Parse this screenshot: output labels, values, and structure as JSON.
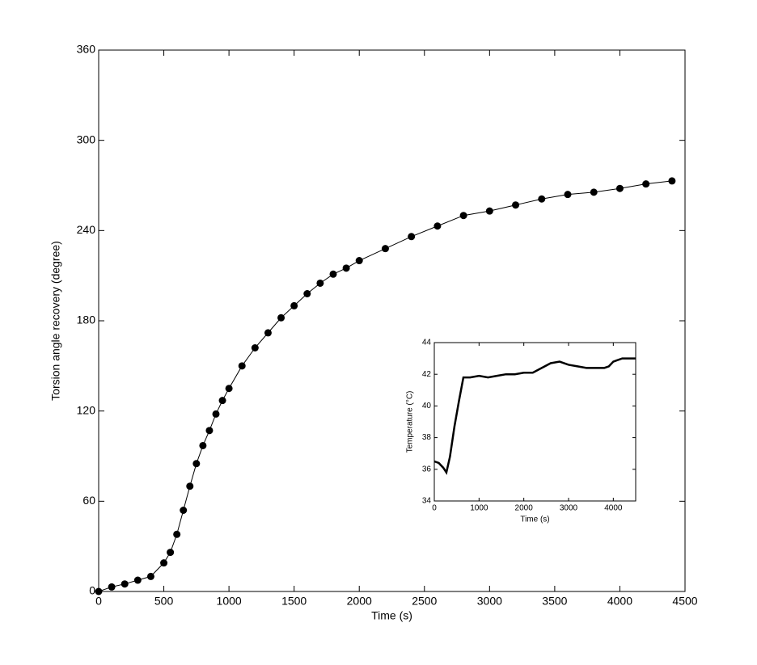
{
  "chart_data": [
    {
      "type": "line",
      "marker": "circle",
      "color": "#000000",
      "x_label": "Time (s)",
      "y_label": "Torsion angle recovery (degree)",
      "x": [
        0,
        100,
        200,
        300,
        400,
        500,
        550,
        600,
        650,
        700,
        750,
        800,
        850,
        900,
        950,
        1000,
        1100,
        1200,
        1300,
        1400,
        1500,
        1600,
        1700,
        1800,
        1900,
        2000,
        2200,
        2400,
        2600,
        2800,
        3000,
        3200,
        3400,
        3600,
        3800,
        4000,
        4200,
        4400
      ],
      "values": [
        0,
        3,
        5,
        7.5,
        10,
        19,
        26,
        38,
        54,
        70,
        85,
        97,
        107,
        118,
        127,
        135,
        150,
        162,
        172,
        182,
        190,
        198,
        205,
        211,
        215,
        220,
        228,
        236,
        243,
        250,
        253,
        257,
        261,
        264,
        265.5,
        268,
        271,
        273
      ],
      "xlim": [
        0,
        4500
      ],
      "xticks": [
        0,
        500,
        1000,
        1500,
        2000,
        2500,
        3000,
        3500,
        4000,
        4500
      ],
      "ylim": [
        0,
        360
      ],
      "yticks": [
        0,
        60,
        120,
        180,
        240,
        300,
        360
      ]
    },
    {
      "type": "line",
      "color": "#000000",
      "x_label": "Time (s)",
      "y_label": "Temperature (°C)",
      "x": [
        0,
        100,
        200,
        270,
        350,
        450,
        550,
        650,
        800,
        1000,
        1200,
        1400,
        1600,
        1800,
        2000,
        2200,
        2400,
        2600,
        2800,
        3000,
        3200,
        3400,
        3600,
        3800,
        3900,
        4000,
        4100,
        4200,
        4300,
        4400,
        4500
      ],
      "values": [
        36.5,
        36.4,
        36.1,
        35.8,
        36.8,
        38.7,
        40.3,
        41.8,
        41.8,
        41.9,
        41.8,
        41.9,
        42.0,
        42.0,
        42.1,
        42.1,
        42.4,
        42.7,
        42.8,
        42.6,
        42.5,
        42.4,
        42.4,
        42.4,
        42.5,
        42.8,
        42.9,
        43.0,
        43.0,
        43.0,
        43.0
      ],
      "xlim": [
        0,
        4500
      ],
      "xticks": [
        0,
        1000,
        2000,
        3000,
        4000
      ],
      "ylim": [
        34,
        44
      ],
      "yticks": [
        34,
        36,
        38,
        40,
        42,
        44
      ]
    }
  ]
}
